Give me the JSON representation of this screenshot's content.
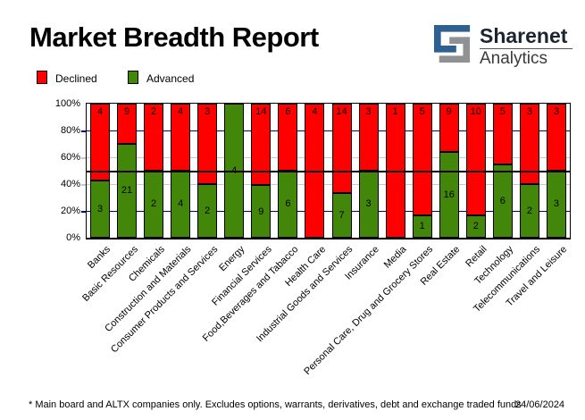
{
  "header": {
    "title": "Market Breadth Report",
    "brand": {
      "name": "Sharenet",
      "sub": "Analytics"
    }
  },
  "legend": [
    {
      "label": "Declined",
      "color": "#ff0000"
    },
    {
      "label": "Advanced",
      "color": "#43870a"
    }
  ],
  "chart_data": {
    "type": "bar",
    "stacked": true,
    "normalized": "percent",
    "title": "Market Breadth Report",
    "categories": [
      "Banks",
      "Basic Resources",
      "Chemicals",
      "Construction and Materials",
      "Consumer Products and Services",
      "Energy",
      "Financial Services",
      "Food,Beverages and Tabacco",
      "Health Care",
      "Industrial Goods and Services",
      "Insurance",
      "Media",
      "Personal Care, Drug and Grocery Stores",
      "Real Estate",
      "Retail",
      "Technology",
      "Telecommunications",
      "Travel and Leisure"
    ],
    "series": [
      {
        "name": "Declined",
        "color": "#ff0000",
        "values": [
          4,
          9,
          2,
          4,
          3,
          0,
          14,
          6,
          4,
          14,
          3,
          1,
          5,
          9,
          10,
          5,
          3,
          3
        ]
      },
      {
        "name": "Advanced",
        "color": "#43870a",
        "values": [
          3,
          21,
          2,
          4,
          2,
          4,
          9,
          6,
          0,
          7,
          3,
          0,
          1,
          16,
          2,
          6,
          2,
          3
        ]
      }
    ],
    "ylim": [
      0,
      100
    ],
    "y_ticks": [
      "0%",
      "20%",
      "40%",
      "60%",
      "80%",
      "100%"
    ],
    "grid": {
      "navy_lines_pct": [
        20,
        80
      ],
      "gray_lines_pct": [
        40,
        60
      ],
      "midline_pct": 50,
      "navy_color": "#000080",
      "gray_color": "#c8c8c8",
      "midline_color": "#000000"
    },
    "legend_position": "top-left"
  },
  "footnote": {
    "text": "* Main board and ALTX companies only. Excludes options, warrants, derivatives, debt and exchange traded funds",
    "date": "24/06/2024"
  }
}
